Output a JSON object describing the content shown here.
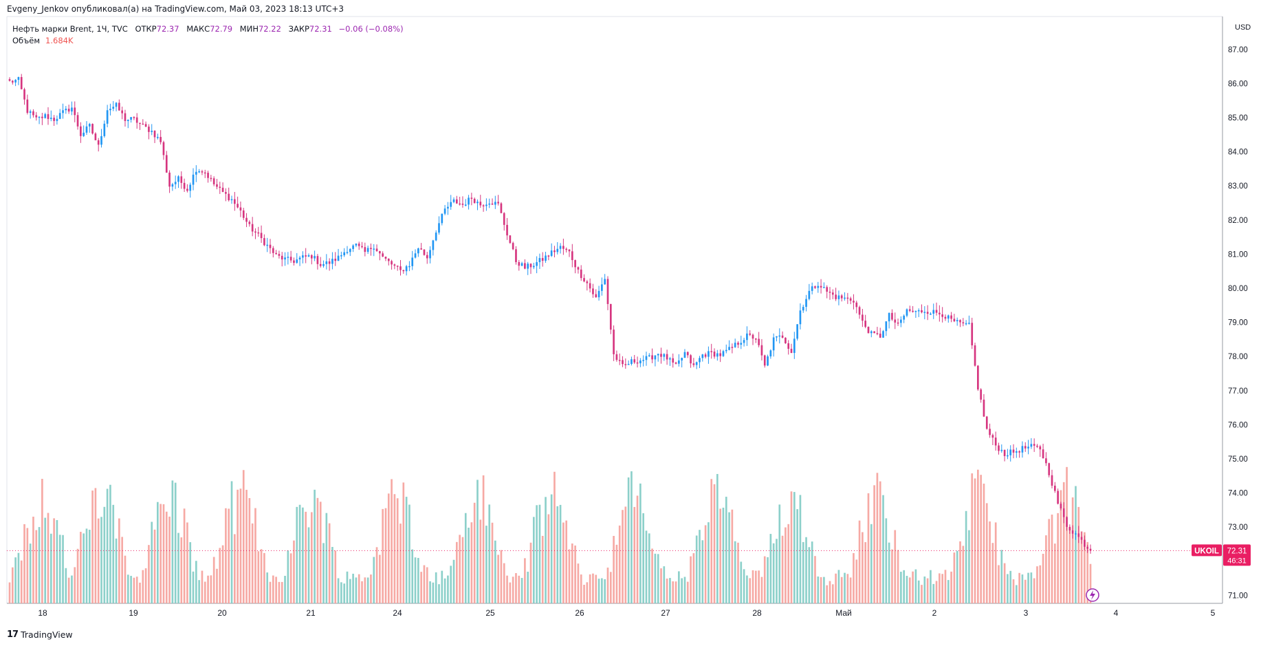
{
  "caption": "Evgeny_Jenkov опубликовал(а) на TradingView.com, Май 03, 2023 18:13 UTC+3",
  "legend": {
    "symbol": "Нефть марки Brent, 1Ч, TVC",
    "open_label": "ОТКР",
    "open_value": "72.37",
    "high_label": "МАКС",
    "high_value": "72.79",
    "low_label": "МИН",
    "low_value": "72.22",
    "close_label": "ЗАКР",
    "close_value": "72.31",
    "change": "−0.06 (−0.08%)"
  },
  "volume_legend": {
    "label": "Объём",
    "value": "1.684K"
  },
  "price_axis": {
    "currency": "USD"
  },
  "price_tag": {
    "symbol": "UKOIL",
    "price": "72.31",
    "countdown": "46:31"
  },
  "footer": {
    "logo": "17",
    "brand": "TradingView"
  },
  "colors": {
    "up": "#2196f3",
    "down": "#d6357f",
    "vol_up": "#80cbc4",
    "vol_down": "#f5a09a",
    "tag": "#e91e63"
  },
  "chart_data": {
    "type": "candlestick",
    "interval": "1h",
    "currency": "USD",
    "ylim": [
      70.8,
      87.6
    ],
    "y_ticks": [
      "71.00",
      "72.00",
      "73.00",
      "74.00",
      "75.00",
      "76.00",
      "77.00",
      "78.00",
      "79.00",
      "80.00",
      "81.00",
      "82.00",
      "83.00",
      "84.00",
      "85.00",
      "86.00",
      "87.00"
    ],
    "x_ticks": [
      "18",
      "19",
      "20",
      "21",
      "24",
      "25",
      "26",
      "27",
      "28",
      "Май",
      "2",
      "3",
      "4",
      "5"
    ],
    "last_price": 72.31,
    "price_path": [
      [
        0,
        86.05
      ],
      [
        3,
        86.1
      ],
      [
        6,
        85.2
      ],
      [
        9,
        84.95
      ],
      [
        12,
        85.05
      ],
      [
        15,
        84.95
      ],
      [
        18,
        85.15
      ],
      [
        21,
        85.3
      ],
      [
        24,
        84.5
      ],
      [
        27,
        84.75
      ],
      [
        30,
        84.15
      ],
      [
        33,
        85.25
      ],
      [
        36,
        85.35
      ],
      [
        39,
        84.95
      ],
      [
        42,
        84.95
      ],
      [
        45,
        84.75
      ],
      [
        48,
        84.6
      ],
      [
        51,
        84.3
      ],
      [
        54,
        83.0
      ],
      [
        57,
        83.2
      ],
      [
        60,
        82.9
      ],
      [
        63,
        83.5
      ],
      [
        66,
        83.4
      ],
      [
        69,
        83.05
      ],
      [
        72,
        82.8
      ],
      [
        75,
        82.6
      ],
      [
        78,
        82.25
      ],
      [
        81,
        81.8
      ],
      [
        84,
        81.55
      ],
      [
        87,
        81.25
      ],
      [
        90,
        80.95
      ],
      [
        93,
        80.85
      ],
      [
        96,
        80.8
      ],
      [
        99,
        80.9
      ],
      [
        102,
        80.95
      ],
      [
        105,
        80.7
      ],
      [
        108,
        80.75
      ],
      [
        111,
        80.9
      ],
      [
        114,
        81.15
      ],
      [
        117,
        81.25
      ],
      [
        120,
        81.05
      ],
      [
        123,
        81.25
      ],
      [
        126,
        80.9
      ],
      [
        129,
        80.7
      ],
      [
        132,
        80.5
      ],
      [
        135,
        80.7
      ],
      [
        138,
        81.2
      ],
      [
        141,
        80.9
      ],
      [
        144,
        81.7
      ],
      [
        147,
        82.3
      ],
      [
        150,
        82.55
      ],
      [
        153,
        82.45
      ],
      [
        156,
        82.65
      ],
      [
        159,
        82.45
      ],
      [
        162,
        82.55
      ],
      [
        165,
        82.45
      ],
      [
        168,
        81.6
      ],
      [
        171,
        80.8
      ],
      [
        174,
        80.6
      ],
      [
        177,
        80.7
      ],
      [
        180,
        80.85
      ],
      [
        183,
        81.05
      ],
      [
        186,
        81.2
      ],
      [
        189,
        81.05
      ],
      [
        192,
        80.5
      ],
      [
        195,
        80.15
      ],
      [
        198,
        79.7
      ],
      [
        201,
        80.3
      ],
      [
        204,
        78.05
      ],
      [
        207,
        77.7
      ],
      [
        210,
        77.85
      ],
      [
        213,
        77.9
      ],
      [
        216,
        77.95
      ],
      [
        219,
        78.1
      ],
      [
        222,
        77.95
      ],
      [
        225,
        77.7
      ],
      [
        228,
        78.1
      ],
      [
        231,
        77.7
      ],
      [
        234,
        78.05
      ],
      [
        237,
        78.1
      ],
      [
        240,
        78.05
      ],
      [
        243,
        78.2
      ],
      [
        246,
        78.4
      ],
      [
        249,
        78.6
      ],
      [
        252,
        78.55
      ],
      [
        255,
        77.7
      ],
      [
        258,
        78.5
      ],
      [
        261,
        78.6
      ],
      [
        264,
        78.15
      ],
      [
        267,
        79.35
      ],
      [
        270,
        79.9
      ],
      [
        273,
        80.15
      ],
      [
        276,
        79.9
      ],
      [
        279,
        79.75
      ],
      [
        282,
        79.7
      ],
      [
        285,
        79.65
      ],
      [
        288,
        79.0
      ],
      [
        291,
        78.65
      ],
      [
        294,
        78.6
      ],
      [
        297,
        79.2
      ],
      [
        300,
        78.9
      ],
      [
        303,
        79.35
      ],
      [
        306,
        79.3
      ],
      [
        309,
        79.35
      ],
      [
        312,
        79.3
      ],
      [
        315,
        79.25
      ],
      [
        318,
        79.05
      ],
      [
        321,
        78.95
      ],
      [
        324,
        78.9
      ],
      [
        327,
        77.1
      ],
      [
        330,
        75.85
      ],
      [
        333,
        75.4
      ],
      [
        336,
        75.15
      ],
      [
        339,
        75.2
      ],
      [
        342,
        75.3
      ],
      [
        345,
        75.35
      ],
      [
        348,
        75.3
      ],
      [
        351,
        74.6
      ],
      [
        354,
        73.7
      ],
      [
        357,
        73.05
      ],
      [
        360,
        72.8
      ],
      [
        363,
        72.5
      ],
      [
        365,
        72.31
      ]
    ]
  }
}
